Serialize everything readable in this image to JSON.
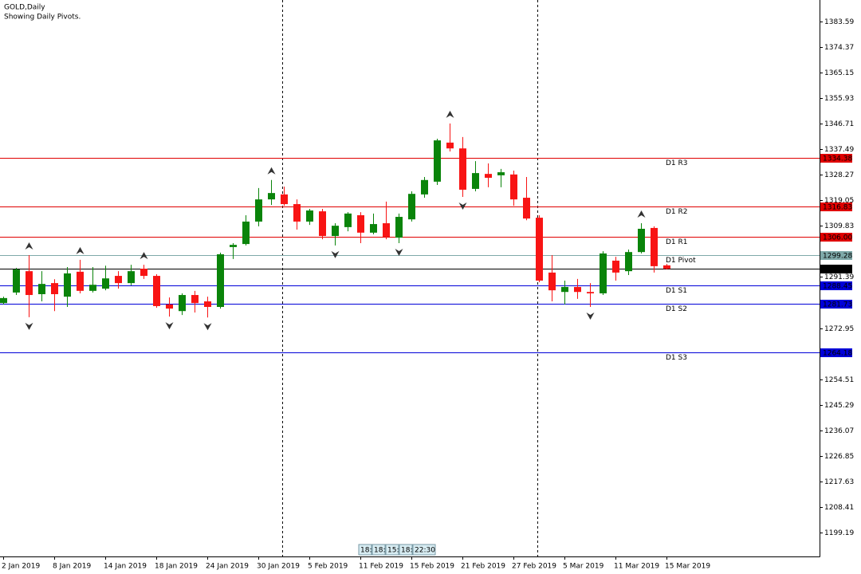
{
  "chart_data": {
    "type": "candlestick",
    "title": "GOLD,Daily",
    "subtitle": "Showing Daily Pivots.",
    "categories": [
      "2 Jan 2019",
      null,
      null,
      null,
      "8 Jan 2019",
      null,
      null,
      null,
      "14 Jan 2019",
      null,
      null,
      null,
      "18 Jan 2019",
      null,
      null,
      null,
      "24 Jan 2019",
      null,
      null,
      null,
      "30 Jan 2019",
      null,
      null,
      null,
      "5 Feb 2019",
      null,
      null,
      null,
      "11 Feb 2019",
      null,
      null,
      null,
      "15 Feb 2019",
      null,
      null,
      null,
      "21 Feb 2019",
      null,
      null,
      null,
      "27 Feb 2019",
      null,
      null,
      null,
      "5 Mar 2019",
      null,
      null,
      null,
      "11 Mar 2019",
      null,
      null,
      null,
      "15 Mar 2019"
    ],
    "open": [
      1282.0,
      1285.8,
      1293.5,
      1285.2,
      1289.2,
      1284.3,
      1293.3,
      1286.4,
      1287.2,
      1291.8,
      1289.2,
      1294.4,
      1291.8,
      1281.5,
      1279.1,
      1284.9,
      1282.6,
      1280.6,
      1302.2,
      1303.3,
      1311.4,
      1319.4,
      1321.2,
      1317.7,
      1311.4,
      1315.1,
      1306.2,
      1309.4,
      1313.7,
      1307.4,
      1310.8,
      1305.6,
      1312.2,
      1321.2,
      1325.8,
      1339.9,
      1337.8,
      1323.2,
      1328.6,
      1328.1,
      1328.4,
      1320.0,
      1312.8,
      1293.0,
      1286.0,
      1287.8,
      1286.0,
      1285.5,
      1297.3,
      1293.5,
      1300.4,
      1309.1,
      1295.6
    ],
    "high": [
      1284.3,
      1294.7,
      1299.3,
      1293.5,
      1290.6,
      1295.0,
      1297.6,
      1295.0,
      1295.5,
      1293.5,
      1295.8,
      1295.8,
      1292.4,
      1284.0,
      1285.5,
      1286.4,
      1284.3,
      1300.2,
      1303.6,
      1313.7,
      1323.5,
      1326.4,
      1324.0,
      1319.4,
      1316.0,
      1316.0,
      1310.8,
      1314.8,
      1314.8,
      1314.3,
      1318.6,
      1314.3,
      1322.3,
      1327.5,
      1341.3,
      1346.8,
      1341.9,
      1333.2,
      1332.4,
      1330.4,
      1329.8,
      1327.5,
      1313.7,
      1299.3,
      1290.1,
      1290.7,
      1289.2,
      1300.7,
      1298.7,
      1301.3,
      1310.8,
      1309.7,
      1296.1
    ],
    "low": [
      1281.5,
      1284.9,
      1276.9,
      1282.6,
      1279.1,
      1280.6,
      1285.5,
      1285.8,
      1286.6,
      1287.2,
      1288.4,
      1290.7,
      1280.3,
      1277.1,
      1277.7,
      1278.6,
      1276.8,
      1280.0,
      1297.9,
      1302.8,
      1309.7,
      1317.4,
      1317.1,
      1308.5,
      1310.2,
      1305.0,
      1302.8,
      1307.9,
      1303.6,
      1306.8,
      1305.0,
      1303.6,
      1311.4,
      1320.0,
      1324.6,
      1336.7,
      1320.3,
      1322.3,
      1323.8,
      1323.8,
      1317.1,
      1311.9,
      1289.5,
      1282.6,
      1281.5,
      1283.5,
      1280.6,
      1284.9,
      1290.1,
      1292.1,
      1299.9,
      1293.0,
      1294.1
    ],
    "close": [
      1283.8,
      1294.1,
      1284.9,
      1288.9,
      1285.2,
      1292.7,
      1286.4,
      1288.6,
      1290.9,
      1289.2,
      1293.5,
      1291.8,
      1280.9,
      1280.0,
      1284.9,
      1282.0,
      1280.6,
      1299.6,
      1303.0,
      1311.4,
      1319.4,
      1321.7,
      1317.7,
      1311.4,
      1315.4,
      1306.2,
      1309.9,
      1314.3,
      1307.4,
      1310.5,
      1305.9,
      1313.1,
      1321.4,
      1326.4,
      1340.7,
      1337.8,
      1322.9,
      1328.9,
      1327.2,
      1329.2,
      1319.4,
      1312.5,
      1290.1,
      1286.6,
      1287.8,
      1286.0,
      1285.5,
      1299.9,
      1293.0,
      1300.4,
      1308.8,
      1295.3,
      1294.35
    ],
    "up_color": "#0a840a",
    "down_color": "#f81414",
    "fractals_up": [
      2,
      6,
      11,
      21,
      35,
      50
    ],
    "fractals_down": [
      2,
      13,
      16,
      26,
      31,
      36,
      46
    ],
    "ylim": [
      1190.55,
      1391.36
    ],
    "yticks": [
      1383.59,
      1374.37,
      1365.15,
      1355.93,
      1346.71,
      1337.49,
      1328.27,
      1319.05,
      1309.83,
      1291.39,
      1272.95,
      1254.51,
      1245.29,
      1236.07,
      1226.85,
      1217.63,
      1208.41,
      1199.19
    ],
    "levels": [
      {
        "label": "D1 R3",
        "value": 1334.38,
        "tag": "1334.38",
        "color": "#e00000",
        "text_color": "#ffffff"
      },
      {
        "label": "D1 R2",
        "value": 1316.83,
        "tag": "1316.83",
        "color": "#e00000",
        "text_color": "#ffffff"
      },
      {
        "label": "D1 R1",
        "value": 1306,
        "tag": "1306.00",
        "color": "#e00000",
        "text_color": "#ffffff"
      },
      {
        "label": "D1 Pivot",
        "value": 1299.28,
        "tag": "1299.28",
        "color": "#7fa9a9",
        "text_color": "#1d3b3b"
      },
      {
        "label": "D1 S1",
        "value": 1288.45,
        "tag": "1288.45",
        "color": "#0000d8",
        "text_color": "#ffffff"
      },
      {
        "label": "D1 S2",
        "value": 1281.73,
        "tag": "1281.73",
        "color": "#0000d8",
        "text_color": "#ffffff"
      },
      {
        "label": "D1 S3",
        "value": 1264.18,
        "tag": "1264.18",
        "color": "#0000d8",
        "text_color": "#ffffff"
      }
    ],
    "last_price": 1294.35,
    "session_times": [
      "18:",
      "18:",
      "15:",
      "18:",
      "22:30"
    ]
  }
}
